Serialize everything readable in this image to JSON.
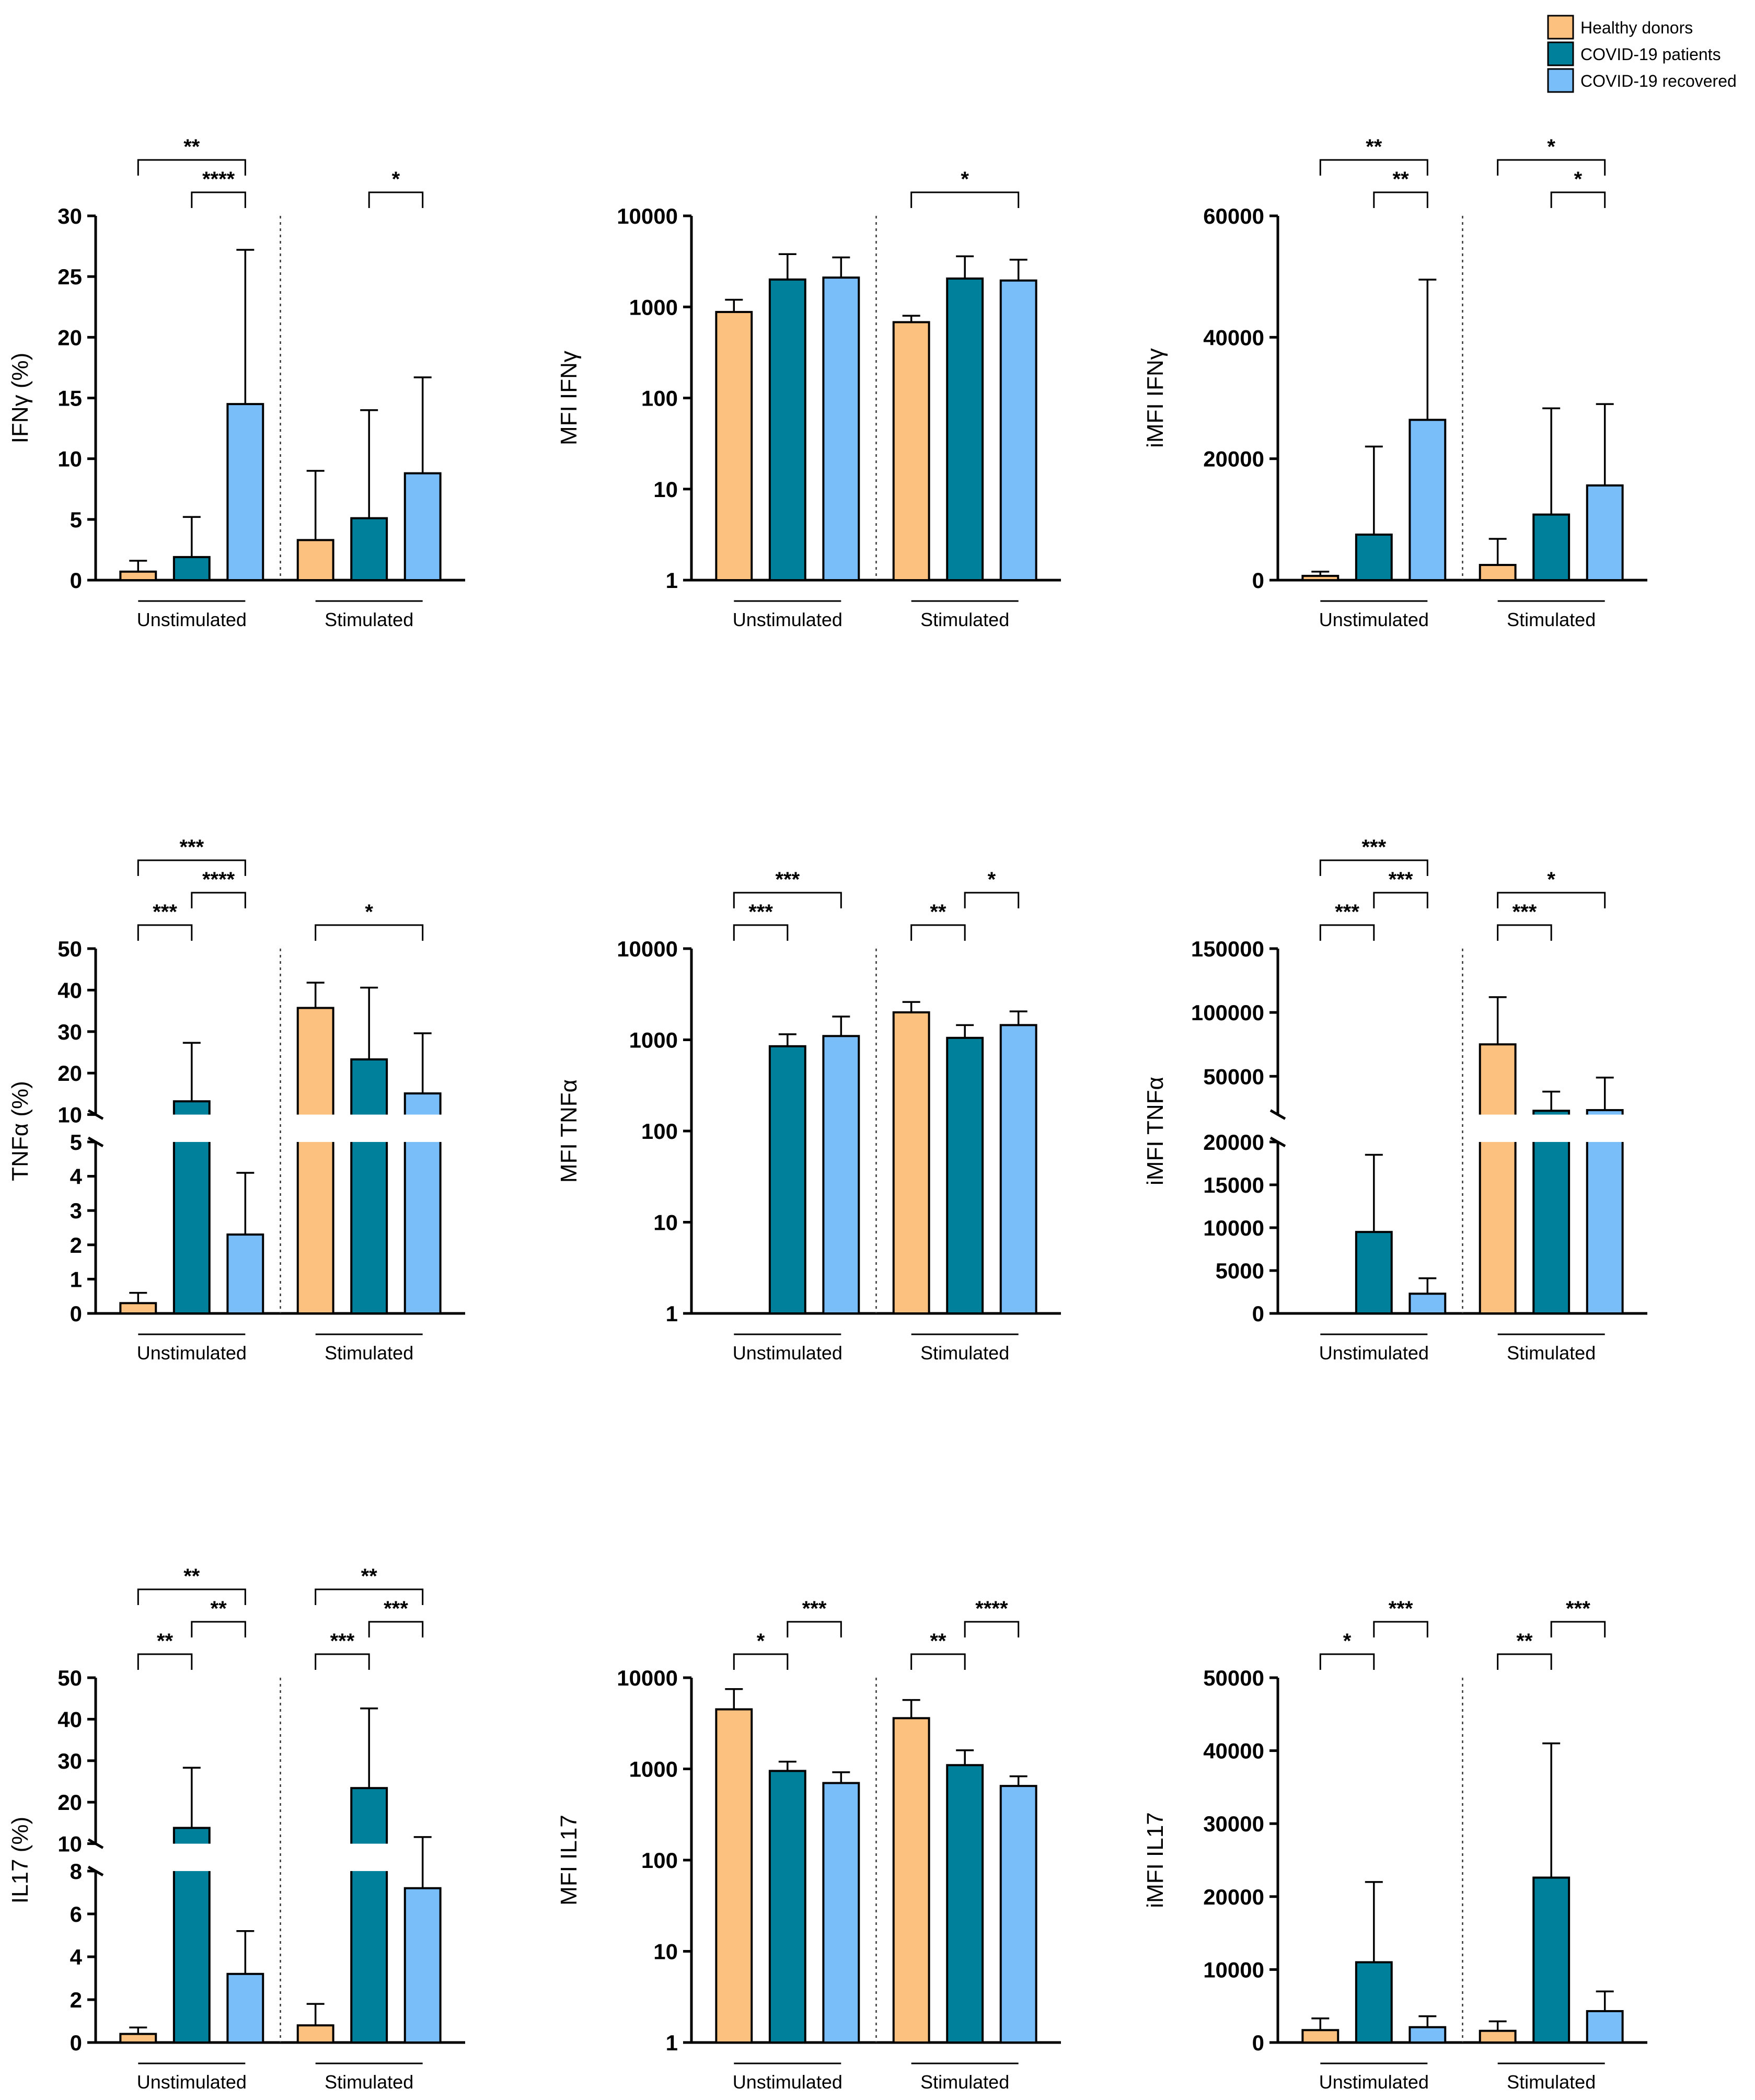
{
  "colors": {
    "healthy": "#FDC17F",
    "patients": "#00809A",
    "recovered": "#7ABEF9",
    "stroke": "#000000"
  },
  "legend": [
    {
      "label": "Healthy donors",
      "color": "#FDC17F"
    },
    {
      "label": "COVID-19 patients",
      "color": "#00809A"
    },
    {
      "label": "COVID-19 recovered",
      "color": "#7ABEF9"
    }
  ],
  "chart_data": [
    {
      "type": "bar",
      "scale": "linear",
      "ylabel": "IFNγ (%)",
      "categories": [
        "Unstimulated",
        "Stimulated"
      ],
      "yticks": [
        "0",
        "5",
        "10",
        "15",
        "20",
        "25",
        "30"
      ],
      "ylim": [
        0,
        30
      ],
      "series": [
        {
          "name": "Healthy donors",
          "values": [
            0.7,
            3.3
          ],
          "errors": [
            1.6,
            9.0
          ]
        },
        {
          "name": "COVID-19 patients",
          "values": [
            1.9,
            5.1
          ],
          "errors": [
            5.2,
            14.0
          ]
        },
        {
          "name": "COVID-19 recovered",
          "values": [
            14.5,
            8.8
          ],
          "errors": [
            27.2,
            16.7
          ]
        }
      ],
      "significance": [
        {
          "group": 0,
          "from": 0,
          "to": 2,
          "label": "**"
        },
        {
          "group": 0,
          "from": 1,
          "to": 2,
          "label": "****"
        },
        {
          "group": 1,
          "from": 1,
          "to": 2,
          "label": "*"
        }
      ]
    },
    {
      "type": "bar",
      "scale": "log",
      "ylabel": "MFI IFNγ",
      "categories": [
        "Unstimulated",
        "Stimulated"
      ],
      "yticks": [
        "1",
        "10",
        "100",
        "1000",
        "10000"
      ],
      "ylim": [
        1,
        10000
      ],
      "series": [
        {
          "name": "Healthy donors",
          "values": [
            880,
            680
          ],
          "errors": [
            1200,
            800
          ]
        },
        {
          "name": "COVID-19 patients",
          "values": [
            2000,
            2050
          ],
          "errors": [
            3800,
            3600
          ]
        },
        {
          "name": "COVID-19 recovered",
          "values": [
            2100,
            1950
          ],
          "errors": [
            3500,
            3300
          ]
        }
      ],
      "significance": [
        {
          "group": 1,
          "from": 0,
          "to": 2,
          "label": "*"
        }
      ]
    },
    {
      "type": "bar",
      "scale": "linear",
      "ylabel": "iMFI IFNγ",
      "categories": [
        "Unstimulated",
        "Stimulated"
      ],
      "yticks": [
        "0",
        "20000",
        "40000",
        "60000"
      ],
      "ylim": [
        0,
        60000
      ],
      "series": [
        {
          "name": "Healthy donors",
          "values": [
            700,
            2500
          ],
          "errors": [
            1400,
            6800
          ]
        },
        {
          "name": "COVID-19 patients",
          "values": [
            7500,
            10800
          ],
          "errors": [
            22000,
            28300
          ]
        },
        {
          "name": "COVID-19 recovered",
          "values": [
            26400,
            15600
          ],
          "errors": [
            49500,
            29000
          ]
        }
      ],
      "significance": [
        {
          "group": 0,
          "from": 0,
          "to": 2,
          "label": "**"
        },
        {
          "group": 0,
          "from": 1,
          "to": 2,
          "label": "**"
        },
        {
          "group": 1,
          "from": 0,
          "to": 2,
          "label": "*"
        },
        {
          "group": 1,
          "from": 1,
          "to": 2,
          "label": "*"
        }
      ]
    },
    {
      "type": "bar",
      "scale": "broken",
      "ylabel": "TNFα (%)",
      "categories": [
        "Unstimulated",
        "Stimulated"
      ],
      "yticks_low": [
        "0",
        "1",
        "2",
        "3",
        "4",
        "5"
      ],
      "yticks_high": [
        "10",
        "20",
        "30",
        "40",
        "50"
      ],
      "ylim_low": [
        0,
        5
      ],
      "ylim_high": [
        10,
        50
      ],
      "series": [
        {
          "name": "Healthy donors",
          "values": [
            0.3,
            35.7
          ],
          "errors": [
            0.6,
            41.8
          ]
        },
        {
          "name": "COVID-19 patients",
          "values": [
            13.2,
            23.3
          ],
          "errors": [
            27.3,
            40.6
          ]
        },
        {
          "name": "COVID-19 recovered",
          "values": [
            2.3,
            15.1
          ],
          "errors": [
            4.1,
            29.6
          ]
        }
      ],
      "significance": [
        {
          "group": 0,
          "from": 0,
          "to": 1,
          "label": "***"
        },
        {
          "group": 0,
          "from": 0,
          "to": 2,
          "label": "***"
        },
        {
          "group": 0,
          "from": 1,
          "to": 2,
          "label": "****"
        },
        {
          "group": 1,
          "from": 0,
          "to": 2,
          "label": "*"
        }
      ]
    },
    {
      "type": "bar",
      "scale": "log",
      "ylabel": "MFI TNFα",
      "categories": [
        "Unstimulated",
        "Stimulated"
      ],
      "yticks": [
        "1",
        "10",
        "100",
        "1000",
        "10000"
      ],
      "ylim": [
        1,
        10000
      ],
      "series": [
        {
          "name": "Healthy donors",
          "values": [
            null,
            2000
          ],
          "errors": [
            null,
            2600
          ]
        },
        {
          "name": "COVID-19 patients",
          "values": [
            850,
            1050
          ],
          "errors": [
            1150,
            1450
          ]
        },
        {
          "name": "COVID-19 recovered",
          "values": [
            1100,
            1450
          ],
          "errors": [
            1800,
            2050
          ]
        }
      ],
      "significance": [
        {
          "group": 0,
          "from": 0,
          "to": 1,
          "label": "***"
        },
        {
          "group": 0,
          "from": 0,
          "to": 2,
          "label": "***"
        },
        {
          "group": 1,
          "from": 0,
          "to": 1,
          "label": "**"
        },
        {
          "group": 1,
          "from": 1,
          "to": 2,
          "label": "*"
        }
      ]
    },
    {
      "type": "bar",
      "scale": "broken",
      "ylabel": "iMFI TNFα",
      "categories": [
        "Unstimulated",
        "Stimulated"
      ],
      "yticks_low": [
        "0",
        "5000",
        "10000",
        "15000",
        "20000"
      ],
      "yticks_high": [
        "50000",
        "100000",
        "150000"
      ],
      "ylim_low": [
        0,
        20000
      ],
      "ylim_high": [
        20000,
        150000
      ],
      "series": [
        {
          "name": "Healthy donors",
          "values": [
            null,
            75000
          ],
          "errors": [
            null,
            112000
          ]
        },
        {
          "name": "COVID-19 patients",
          "values": [
            9500,
            23000
          ],
          "errors": [
            18500,
            38000
          ]
        },
        {
          "name": "COVID-19 recovered",
          "values": [
            2300,
            23500
          ],
          "errors": [
            4100,
            49000
          ]
        }
      ],
      "significance": [
        {
          "group": 0,
          "from": 0,
          "to": 1,
          "label": "***"
        },
        {
          "group": 0,
          "from": 0,
          "to": 2,
          "label": "***"
        },
        {
          "group": 0,
          "from": 1,
          "to": 2,
          "label": "***"
        },
        {
          "group": 1,
          "from": 0,
          "to": 1,
          "label": "***"
        },
        {
          "group": 1,
          "from": 0,
          "to": 2,
          "label": "*"
        }
      ]
    },
    {
      "type": "bar",
      "scale": "broken",
      "ylabel": "IL17 (%)",
      "categories": [
        "Unstimulated",
        "Stimulated"
      ],
      "yticks_low": [
        "0",
        "2",
        "4",
        "6",
        "8"
      ],
      "yticks_high": [
        "10",
        "20",
        "30",
        "40",
        "50"
      ],
      "ylim_low": [
        0,
        8
      ],
      "ylim_high": [
        10,
        50
      ],
      "series": [
        {
          "name": "Healthy donors",
          "values": [
            0.4,
            0.8
          ],
          "errors": [
            0.7,
            1.8
          ]
        },
        {
          "name": "COVID-19 patients",
          "values": [
            13.8,
            23.4
          ],
          "errors": [
            28.3,
            42.6
          ]
        },
        {
          "name": "COVID-19 recovered",
          "values": [
            3.2,
            7.2
          ],
          "errors": [
            5.2,
            11.6
          ]
        }
      ],
      "significance": [
        {
          "group": 0,
          "from": 0,
          "to": 1,
          "label": "**"
        },
        {
          "group": 0,
          "from": 0,
          "to": 2,
          "label": "**"
        },
        {
          "group": 0,
          "from": 1,
          "to": 2,
          "label": "**"
        },
        {
          "group": 1,
          "from": 0,
          "to": 1,
          "label": "***"
        },
        {
          "group": 1,
          "from": 0,
          "to": 2,
          "label": "**"
        },
        {
          "group": 1,
          "from": 1,
          "to": 2,
          "label": "***"
        }
      ]
    },
    {
      "type": "bar",
      "scale": "log",
      "ylabel": "MFI IL17",
      "categories": [
        "Unstimulated",
        "Stimulated"
      ],
      "yticks": [
        "1",
        "10",
        "100",
        "1000",
        "10000"
      ],
      "ylim": [
        1,
        10000
      ],
      "series": [
        {
          "name": "Healthy donors",
          "values": [
            4500,
            3600
          ],
          "errors": [
            7500,
            5700
          ]
        },
        {
          "name": "COVID-19 patients",
          "values": [
            950,
            1100
          ],
          "errors": [
            1200,
            1600
          ]
        },
        {
          "name": "COVID-19 recovered",
          "values": [
            700,
            650
          ],
          "errors": [
            920,
            830
          ]
        }
      ],
      "significance": [
        {
          "group": 0,
          "from": 0,
          "to": 1,
          "label": "*"
        },
        {
          "group": 0,
          "from": 1,
          "to": 2,
          "label": "***"
        },
        {
          "group": 1,
          "from": 0,
          "to": 1,
          "label": "**"
        },
        {
          "group": 1,
          "from": 1,
          "to": 2,
          "label": "****"
        }
      ]
    },
    {
      "type": "bar",
      "scale": "linear",
      "ylabel": "iMFI IL17",
      "categories": [
        "Unstimulated",
        "Stimulated"
      ],
      "yticks": [
        "0",
        "10000",
        "20000",
        "30000",
        "40000",
        "50000"
      ],
      "ylim": [
        0,
        50000
      ],
      "series": [
        {
          "name": "Healthy donors",
          "values": [
            1700,
            1600
          ],
          "errors": [
            3300,
            2900
          ]
        },
        {
          "name": "COVID-19 patients",
          "values": [
            11000,
            22600
          ],
          "errors": [
            22000,
            41000
          ]
        },
        {
          "name": "COVID-19 recovered",
          "values": [
            2100,
            4300
          ],
          "errors": [
            3600,
            7000
          ]
        }
      ],
      "significance": [
        {
          "group": 0,
          "from": 0,
          "to": 1,
          "label": "*"
        },
        {
          "group": 0,
          "from": 1,
          "to": 2,
          "label": "***"
        },
        {
          "group": 1,
          "from": 0,
          "to": 1,
          "label": "**"
        },
        {
          "group": 1,
          "from": 1,
          "to": 2,
          "label": "***"
        }
      ]
    }
  ]
}
